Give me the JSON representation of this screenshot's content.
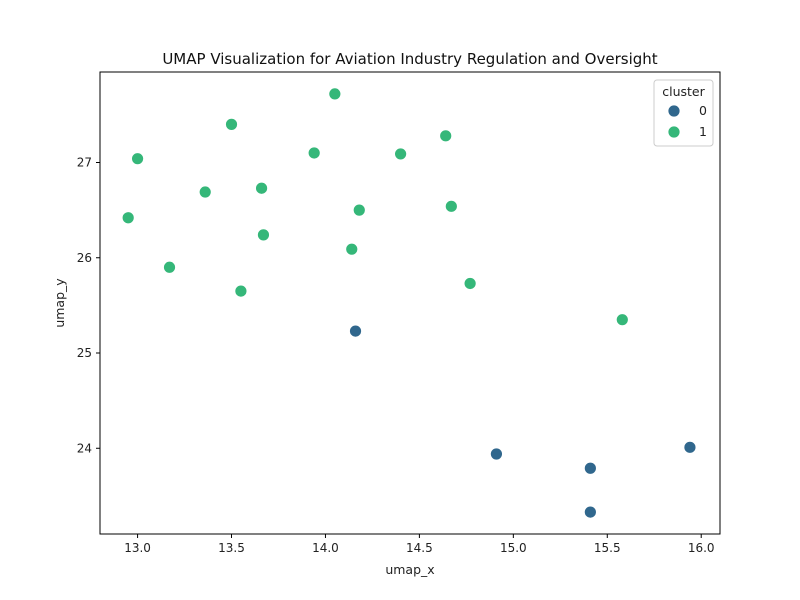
{
  "chart_data": {
    "type": "scatter",
    "title": "UMAP Visualization for Aviation Industry Regulation and Oversight",
    "xlabel": "umap_x",
    "ylabel": "umap_y",
    "xlim": [
      12.8,
      16.1
    ],
    "ylim": [
      23.1,
      27.95
    ],
    "xticks": [
      "13.0",
      "13.5",
      "14.0",
      "14.5",
      "15.0",
      "15.5",
      "16.0"
    ],
    "yticks": [
      "24",
      "25",
      "26",
      "27"
    ],
    "grid": false,
    "legend": {
      "title": "cluster",
      "placement": "top-right"
    },
    "series": [
      {
        "name": "0",
        "color": "#30678d",
        "points": [
          [
            14.16,
            25.23
          ],
          [
            14.91,
            23.94
          ],
          [
            15.41,
            23.79
          ],
          [
            15.41,
            23.33
          ],
          [
            15.94,
            24.01
          ]
        ]
      },
      {
        "name": "1",
        "color": "#35b779",
        "points": [
          [
            14.05,
            27.72
          ],
          [
            13.5,
            27.4
          ],
          [
            14.64,
            27.28
          ],
          [
            13.94,
            27.1
          ],
          [
            14.4,
            27.09
          ],
          [
            13.0,
            27.04
          ],
          [
            13.36,
            26.69
          ],
          [
            13.66,
            26.73
          ],
          [
            14.67,
            26.54
          ],
          [
            14.18,
            26.5
          ],
          [
            12.95,
            26.42
          ],
          [
            13.67,
            26.24
          ],
          [
            14.14,
            26.09
          ],
          [
            13.17,
            25.9
          ],
          [
            14.77,
            25.73
          ],
          [
            13.55,
            25.65
          ],
          [
            15.58,
            25.35
          ]
        ]
      }
    ]
  }
}
